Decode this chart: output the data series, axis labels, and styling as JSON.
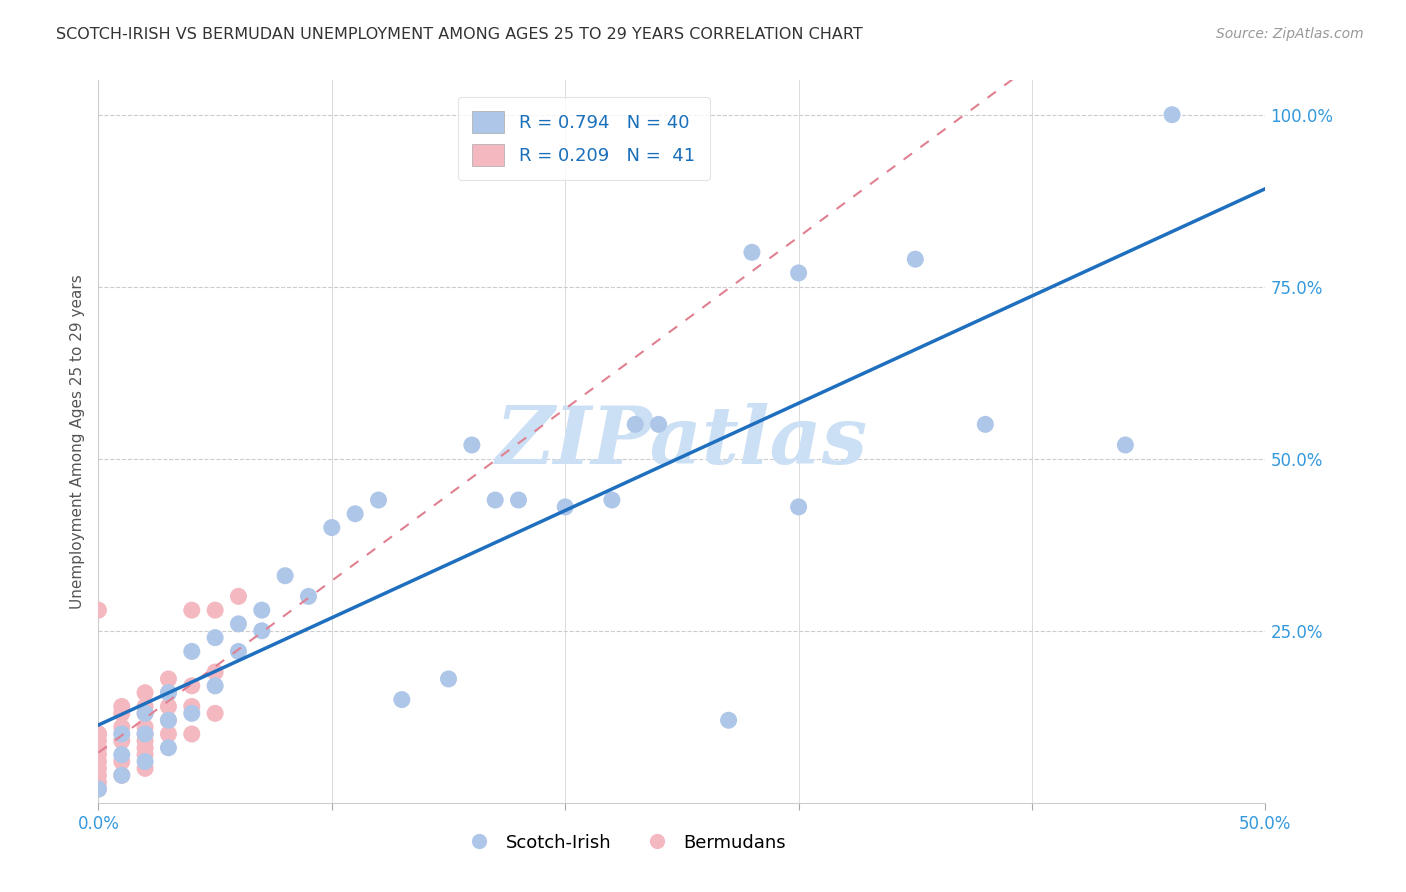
{
  "title": "SCOTCH-IRISH VS BERMUDAN UNEMPLOYMENT AMONG AGES 25 TO 29 YEARS CORRELATION CHART",
  "source": "Source: ZipAtlas.com",
  "ylabel": "Unemployment Among Ages 25 to 29 years",
  "xlim": [
    0,
    0.5
  ],
  "ylim": [
    0,
    1.05
  ],
  "xtick_positions": [
    0.0,
    0.1,
    0.2,
    0.3,
    0.4,
    0.5
  ],
  "xticklabels": [
    "0.0%",
    "",
    "",
    "",
    "",
    "50.0%"
  ],
  "ytick_positions": [
    0.0,
    0.25,
    0.5,
    0.75,
    1.0
  ],
  "yticklabels": [
    "",
    "25.0%",
    "50.0%",
    "75.0%",
    "100.0%"
  ],
  "legend_entries": [
    {
      "label": "R = 0.794   N = 40",
      "color": "#aec6e8"
    },
    {
      "label": "R = 0.209   N =  41",
      "color": "#f4b8c1"
    }
  ],
  "legend_labels": [
    "Scotch-Irish",
    "Bermudans"
  ],
  "scotch_irish_x": [
    0.0,
    0.01,
    0.01,
    0.01,
    0.02,
    0.02,
    0.02,
    0.03,
    0.03,
    0.03,
    0.04,
    0.04,
    0.05,
    0.05,
    0.06,
    0.06,
    0.07,
    0.07,
    0.08,
    0.09,
    0.1,
    0.11,
    0.12,
    0.13,
    0.15,
    0.16,
    0.17,
    0.18,
    0.2,
    0.22,
    0.23,
    0.24,
    0.27,
    0.28,
    0.3,
    0.3,
    0.35,
    0.38,
    0.44,
    0.46
  ],
  "scotch_irish_y": [
    0.02,
    0.04,
    0.07,
    0.1,
    0.06,
    0.1,
    0.13,
    0.08,
    0.12,
    0.16,
    0.13,
    0.22,
    0.17,
    0.24,
    0.22,
    0.26,
    0.25,
    0.28,
    0.33,
    0.3,
    0.4,
    0.42,
    0.44,
    0.15,
    0.18,
    0.52,
    0.44,
    0.44,
    0.43,
    0.44,
    0.55,
    0.55,
    0.12,
    0.8,
    0.77,
    0.43,
    0.79,
    0.55,
    0.52,
    1.0
  ],
  "bermudans_x": [
    0.0,
    0.0,
    0.0,
    0.0,
    0.0,
    0.0,
    0.0,
    0.0,
    0.0,
    0.0,
    0.0,
    0.0,
    0.0,
    0.01,
    0.01,
    0.01,
    0.01,
    0.01,
    0.01,
    0.02,
    0.02,
    0.02,
    0.02,
    0.02,
    0.02,
    0.02,
    0.02,
    0.02,
    0.03,
    0.03,
    0.03,
    0.03,
    0.03,
    0.04,
    0.04,
    0.04,
    0.04,
    0.05,
    0.05,
    0.05,
    0.06
  ],
  "bermudans_y": [
    0.02,
    0.03,
    0.04,
    0.05,
    0.06,
    0.07,
    0.08,
    0.08,
    0.09,
    0.1,
    0.1,
    0.1,
    0.28,
    0.04,
    0.06,
    0.09,
    0.11,
    0.13,
    0.14,
    0.05,
    0.07,
    0.08,
    0.09,
    0.1,
    0.11,
    0.13,
    0.14,
    0.16,
    0.1,
    0.12,
    0.14,
    0.16,
    0.18,
    0.1,
    0.14,
    0.17,
    0.28,
    0.13,
    0.19,
    0.28,
    0.3
  ],
  "scotch_irish_color": "#aec6e8",
  "bermudans_color": "#f4b8c1",
  "scotch_irish_line_color": "#1f6fbf",
  "bermudans_line_color": "#e08090",
  "background_color": "#ffffff",
  "watermark_text": "ZIPatlas",
  "watermark_color": "#cce0f5"
}
